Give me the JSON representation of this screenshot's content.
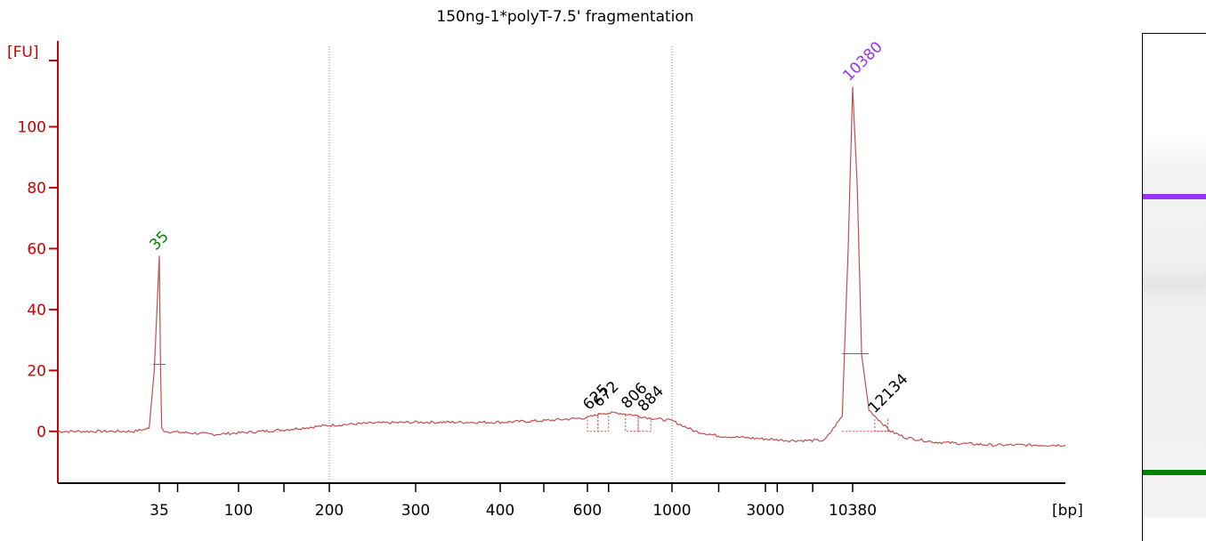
{
  "chart_data": {
    "type": "line",
    "title": "150ng-1*polyT-7.5' fragmentation",
    "ylabel": "[FU]",
    "xlabel": "[bp]",
    "ylim": [
      -17,
      127
    ],
    "yticks": [
      0,
      20,
      40,
      60,
      80,
      100
    ],
    "xtick_labels": [
      "35",
      "100",
      "200",
      "300",
      "400",
      "600",
      "1000",
      "3000",
      "10380"
    ],
    "grid": "dotted vertical lines at 200 and 1000 bp",
    "colors": {
      "axis": "#cc0000",
      "trace": "#c0504d",
      "lower_marker": "#008000",
      "upper_marker": "#9b30ff",
      "label": "#000000"
    },
    "series": [
      {
        "x_unit": "bp",
        "points": [
          [
            "15",
            0
          ],
          [
            "20",
            0
          ],
          [
            "25",
            0
          ],
          [
            "30",
            0
          ],
          [
            "33",
            1
          ],
          [
            "34",
            20
          ],
          [
            "35",
            57.5
          ],
          [
            "36",
            20
          ],
          [
            "37",
            1
          ],
          [
            "40",
            0
          ],
          [
            "60",
            -0.5
          ],
          [
            "80",
            -1
          ],
          [
            "100",
            -0.5
          ],
          [
            "150",
            0.5
          ],
          [
            "200",
            2
          ],
          [
            "250",
            2.7
          ],
          [
            "300",
            3
          ],
          [
            "350",
            3
          ],
          [
            "400",
            3
          ],
          [
            "500",
            3.5
          ],
          [
            "600",
            4.5
          ],
          [
            "625",
            5
          ],
          [
            "672",
            6
          ],
          [
            "750",
            6
          ],
          [
            "806",
            5.5
          ],
          [
            "884",
            4.5
          ],
          [
            "1000",
            3.5
          ],
          [
            "1500",
            0
          ],
          [
            "2000",
            -1.5
          ],
          [
            "3000",
            -2.5
          ],
          [
            "5000",
            -3
          ],
          [
            "8000",
            -3
          ],
          [
            "9500",
            5
          ],
          [
            "10000",
            60
          ],
          [
            "10380",
            113
          ],
          [
            "10700",
            80
          ],
          [
            "11000",
            25
          ],
          [
            "11500",
            7
          ],
          [
            "12134",
            4
          ],
          [
            "13000",
            0
          ],
          [
            "14000",
            -2
          ],
          [
            "16000",
            -3.5
          ],
          [
            "20000",
            -4.5
          ],
          [
            "25000",
            -4.5
          ]
        ]
      }
    ],
    "peak_labels": [
      {
        "text": "35",
        "x": "35",
        "y": 57.5,
        "color": "#008000"
      },
      {
        "text": "10380",
        "x": "10380",
        "y": 113,
        "color": "#9b30ff"
      },
      {
        "text": "625",
        "x": "625",
        "y": 5
      },
      {
        "text": "672",
        "x": "672",
        "y": 6
      },
      {
        "text": "806",
        "x": "806",
        "y": 5.5
      },
      {
        "text": "884",
        "x": "884",
        "y": 4.5
      },
      {
        "text": "12134",
        "x": "12134",
        "y": 4
      }
    ]
  },
  "gel_image": {
    "bands": [
      {
        "name": "upper-marker",
        "bp": "10380",
        "color": "#9b30ff"
      },
      {
        "name": "lower-marker",
        "bp": "35",
        "color": "#008000"
      }
    ]
  }
}
